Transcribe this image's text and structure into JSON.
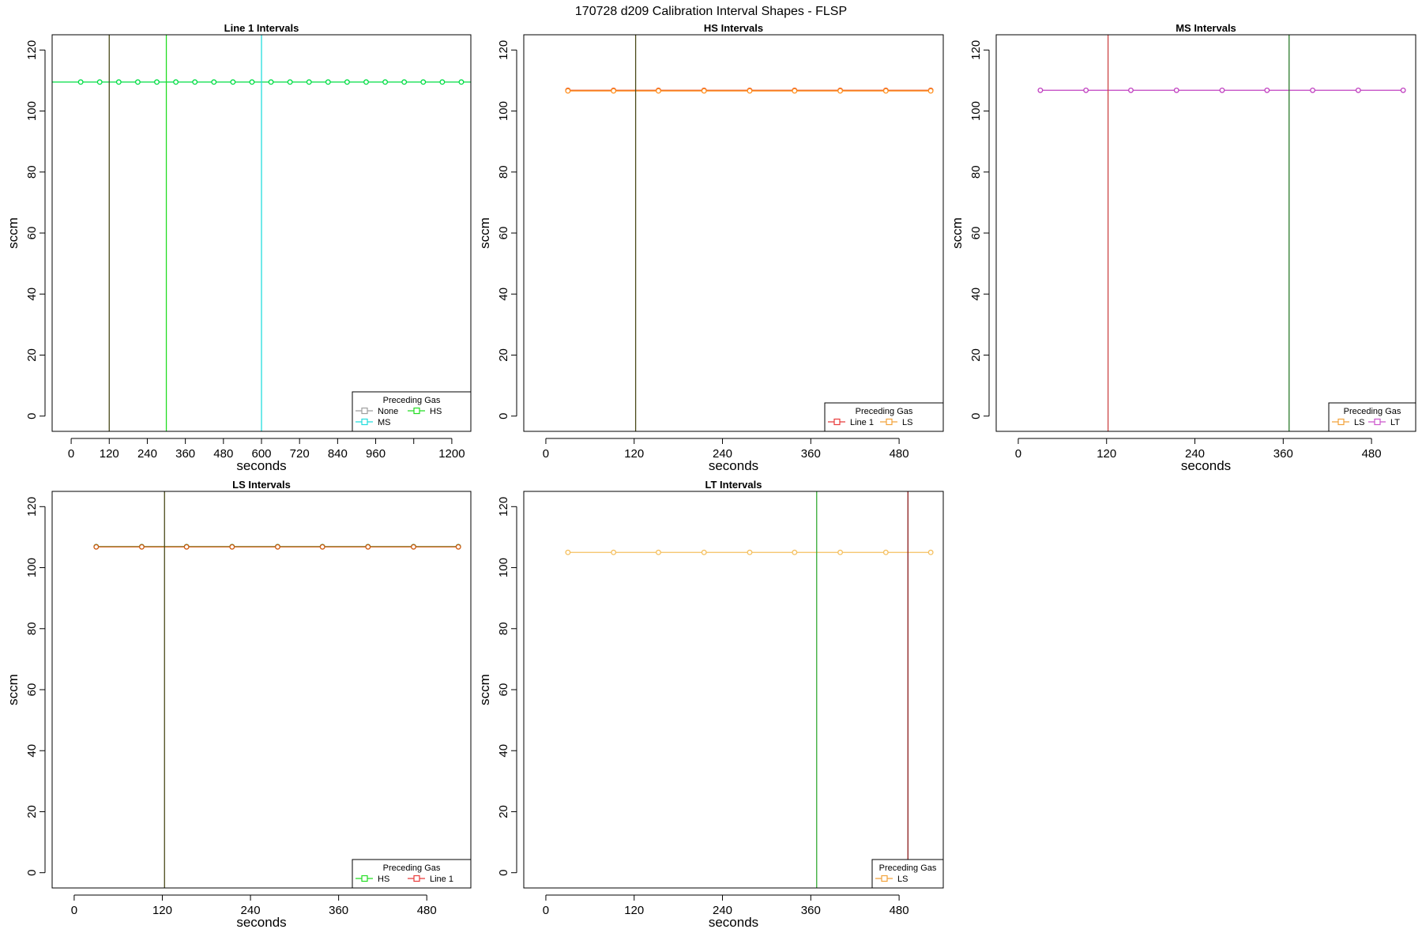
{
  "figure_title": "170728   d209   Calibration Interval Shapes - FLSP",
  "colors": {
    "None": "#9e9e9e",
    "HS": "#22dd22",
    "MS": "#22dddd",
    "Line 1": "#e83b3b",
    "LS": "#f2a23a",
    "LT": "#cc55cc",
    "line1_series": "#00dd44",
    "hs_series": "#ff7f0e",
    "ms_series": "#c040c0",
    "ls_series": "#d06010",
    "lt_series": "#f5c060",
    "vline_dark_olive": "#4a4a1a",
    "vline_green": "#22dd22",
    "vline_cyan": "#22dddd",
    "vline_red": "#cc4444",
    "vline_dark_green": "#2a7a2a",
    "vline_maroon": "#8b1a1a",
    "vline_green2": "#33aa33"
  },
  "chart_data": [
    {
      "type": "line",
      "title": "Line 1 Intervals",
      "xlabel": "seconds",
      "ylabel": "sccm",
      "xlim": [
        -60,
        1260
      ],
      "ylim": [
        -5,
        125
      ],
      "xticks": [
        0,
        120,
        240,
        360,
        480,
        600,
        720,
        840,
        960,
        1080,
        1200
      ],
      "xtick_labels": [
        "0",
        "120",
        "240",
        "360",
        "480",
        "600",
        "720",
        "840",
        "960",
        "",
        "1200"
      ],
      "yticks": [
        0,
        20,
        40,
        60,
        80,
        100,
        120
      ],
      "legend": {
        "title": "Preceding Gas",
        "entries": [
          "None",
          "HS",
          "MS"
        ],
        "columns": 2,
        "position": "bottom-right"
      },
      "series": [
        {
          "color": "#00dd44",
          "x": [
            30,
            90,
            150,
            210,
            270,
            330,
            390,
            450,
            510,
            570,
            630,
            690,
            750,
            810,
            870,
            930,
            990,
            1050,
            1110,
            1170,
            1230
          ],
          "y": [
            109.5,
            109.5,
            109.5,
            109.5,
            109.5,
            109.5,
            109.5,
            109.5,
            109.5,
            109.5,
            109.5,
            109.5,
            109.5,
            109.5,
            109.5,
            109.5,
            109.5,
            109.5,
            109.5,
            109.5,
            109.5
          ],
          "line_to_edge": true
        }
      ],
      "vlines": [
        {
          "x": 120,
          "color": "#4a4a1a"
        },
        {
          "x": 300,
          "color": "#22dd22"
        },
        {
          "x": 600,
          "color": "#22dddd"
        }
      ]
    },
    {
      "type": "line",
      "title": "HS Intervals",
      "xlabel": "seconds",
      "ylabel": "sccm",
      "xlim": [
        -30,
        540
      ],
      "ylim": [
        -5,
        125
      ],
      "xticks": [
        0,
        120,
        240,
        360,
        480
      ],
      "xtick_labels": [
        "0",
        "120",
        "240",
        "360",
        "480"
      ],
      "yticks": [
        0,
        20,
        40,
        60,
        80,
        100,
        120
      ],
      "legend": {
        "title": "Preceding Gas",
        "entries": [
          "Line 1",
          "LS"
        ],
        "columns": 2,
        "position": "bottom-right"
      },
      "series": [
        {
          "color": "#e85020",
          "x": [
            30,
            92,
            153,
            215,
            277,
            338,
            400,
            462,
            523
          ],
          "y": [
            106.8,
            106.8,
            106.8,
            106.8,
            106.8,
            106.8,
            106.8,
            106.8,
            106.8
          ]
        },
        {
          "color": "#ff9020",
          "x": [
            30,
            92,
            153,
            215,
            277,
            338,
            400,
            462,
            523
          ],
          "y": [
            106.6,
            106.6,
            106.6,
            106.6,
            106.6,
            106.6,
            106.6,
            106.6,
            106.6
          ]
        }
      ],
      "vlines": [
        {
          "x": 122,
          "color": "#4a4a1a"
        }
      ]
    },
    {
      "type": "line",
      "title": "MS Intervals",
      "xlabel": "seconds",
      "ylabel": "sccm",
      "xlim": [
        -30,
        540
      ],
      "ylim": [
        -5,
        125
      ],
      "xticks": [
        0,
        120,
        240,
        360,
        480
      ],
      "xtick_labels": [
        "0",
        "120",
        "240",
        "360",
        "480"
      ],
      "yticks": [
        0,
        20,
        40,
        60,
        80,
        100,
        120
      ],
      "legend": {
        "title": "Preceding Gas",
        "entries": [
          "LS",
          "LT"
        ],
        "columns": 2,
        "position": "bottom-right"
      },
      "series": [
        {
          "color": "#c040c0",
          "x": [
            30,
            92,
            153,
            215,
            277,
            338,
            400,
            462,
            523
          ],
          "y": [
            106.8,
            106.8,
            106.8,
            106.8,
            106.8,
            106.8,
            106.8,
            106.8,
            106.8
          ]
        }
      ],
      "vlines": [
        {
          "x": 122,
          "color": "#cc4444"
        },
        {
          "x": 368,
          "color": "#2a7a2a"
        }
      ]
    },
    {
      "type": "line",
      "title": "LS Intervals",
      "xlabel": "seconds",
      "ylabel": "sccm",
      "xlim": [
        -30,
        540
      ],
      "ylim": [
        -5,
        125
      ],
      "xticks": [
        0,
        120,
        240,
        360,
        480
      ],
      "xtick_labels": [
        "0",
        "120",
        "240",
        "360",
        "480"
      ],
      "yticks": [
        0,
        20,
        40,
        60,
        80,
        100,
        120
      ],
      "legend": {
        "title": "Preceding Gas",
        "entries": [
          "HS",
          "Line 1"
        ],
        "columns": 2,
        "position": "bottom-right"
      },
      "series": [
        {
          "color": "#2a8a2a",
          "x": [
            30,
            92,
            153,
            215,
            277,
            338,
            400,
            462,
            523
          ],
          "y": [
            106.9,
            106.9,
            106.9,
            106.9,
            106.9,
            106.9,
            106.9,
            106.9,
            106.9
          ]
        },
        {
          "color": "#d05a10",
          "x": [
            30,
            92,
            153,
            215,
            277,
            338,
            400,
            462,
            523
          ],
          "y": [
            106.8,
            106.8,
            106.8,
            106.8,
            106.8,
            106.8,
            106.8,
            106.8,
            106.8
          ]
        }
      ],
      "vlines": [
        {
          "x": 123,
          "color": "#4a4a1a"
        }
      ]
    },
    {
      "type": "line",
      "title": "LT Intervals",
      "xlabel": "seconds",
      "ylabel": "sccm",
      "xlim": [
        -30,
        540
      ],
      "ylim": [
        -5,
        125
      ],
      "xticks": [
        0,
        120,
        240,
        360,
        480
      ],
      "xtick_labels": [
        "0",
        "120",
        "240",
        "360",
        "480"
      ],
      "yticks": [
        0,
        20,
        40,
        60,
        80,
        100,
        120
      ],
      "legend": {
        "title": "Preceding Gas",
        "entries": [
          "LS"
        ],
        "columns": 1,
        "position": "bottom-right"
      },
      "series": [
        {
          "color": "#f5c060",
          "x": [
            30,
            92,
            153,
            215,
            277,
            338,
            400,
            462,
            523
          ],
          "y": [
            105,
            105,
            105,
            105,
            105,
            105,
            105,
            105,
            105
          ]
        }
      ],
      "vlines": [
        {
          "x": 368,
          "color": "#33aa33"
        },
        {
          "x": 492,
          "color": "#8b1a1a"
        }
      ]
    }
  ]
}
